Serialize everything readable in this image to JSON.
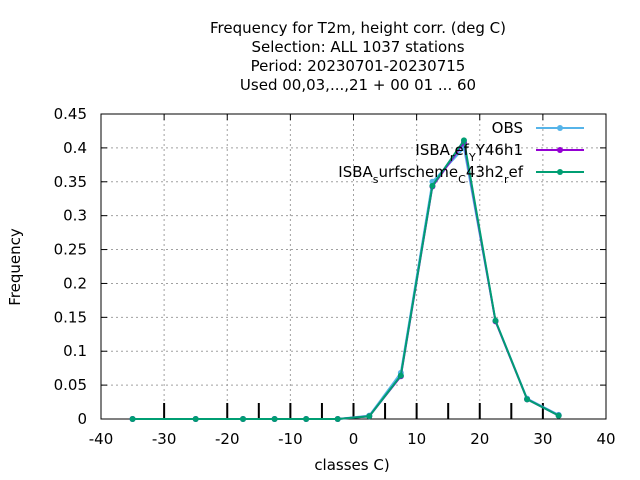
{
  "chart_data": {
    "type": "line",
    "title_lines": [
      "Frequency  for T2m, height corr. (deg C)",
      "Selection: ALL   1037 stations",
      "Period: 20230701-20230715",
      "Used  00,03,...,21  + 00 01 ... 60"
    ],
    "xlabel": "classes C)",
    "ylabel": "Frequency",
    "xlim": [
      -40,
      40
    ],
    "ylim": [
      0,
      0.45
    ],
    "xticks": [
      -40,
      -30,
      -20,
      -10,
      0,
      10,
      20,
      30,
      40
    ],
    "xtick_labels": [
      "-40",
      "-30",
      "-20",
      "-10",
      "0",
      "10",
      "20",
      "30",
      "40"
    ],
    "yticks": [
      0,
      0.05,
      0.1,
      0.15,
      0.2,
      0.25,
      0.3,
      0.35,
      0.4,
      0.45
    ],
    "ytick_labels": [
      "0",
      "0.05",
      "0.1",
      "0.15",
      "0.2",
      "0.25",
      "0.3",
      "0.35",
      "0.4",
      "0.45"
    ],
    "grid": true,
    "legend_position": "top-right",
    "class_bounds": [
      -30,
      -20,
      -15,
      -10,
      -5,
      0,
      5,
      10,
      15,
      20,
      25,
      30
    ],
    "x": [
      -35,
      -25,
      -17.5,
      -12.5,
      -7.5,
      -2.5,
      2.5,
      7.5,
      12.5,
      17.5,
      22.5,
      27.5,
      32.5
    ],
    "series": [
      {
        "name": "OBS",
        "legend_parts": [
          [
            "OBS",
            "base"
          ]
        ],
        "color": "#56b4e9",
        "values": [
          0,
          0,
          0,
          0,
          0,
          0,
          0.005,
          0.068,
          0.35,
          0.4,
          0.145,
          0.03,
          0.006
        ]
      },
      {
        "name": "ISBA_ref_Y46h1",
        "legend_parts": [
          [
            "ISBA",
            "base"
          ],
          [
            "r",
            "sub"
          ],
          [
            "ef",
            "base"
          ],
          [
            "Y",
            "sub"
          ],
          [
            "Y46h1",
            "base"
          ]
        ],
        "color": "#9400d3",
        "values": [
          0,
          0,
          0,
          0,
          0,
          0,
          0.004,
          0.063,
          0.343,
          0.408,
          0.144,
          0.029,
          0.005
        ]
      },
      {
        "name": "ISBA_surfscheme_C43h2_ref",
        "legend_parts": [
          [
            "ISBA",
            "base"
          ],
          [
            "s",
            "sub"
          ],
          [
            "urfscheme",
            "base"
          ],
          [
            "C",
            "sub"
          ],
          [
            "43h2",
            "base"
          ],
          [
            "r",
            "sub"
          ],
          [
            "ef",
            "base"
          ]
        ],
        "color": "#009e73",
        "values": [
          0,
          0,
          0,
          0,
          0,
          0,
          0.004,
          0.064,
          0.344,
          0.411,
          0.145,
          0.029,
          0.005
        ]
      }
    ]
  }
}
